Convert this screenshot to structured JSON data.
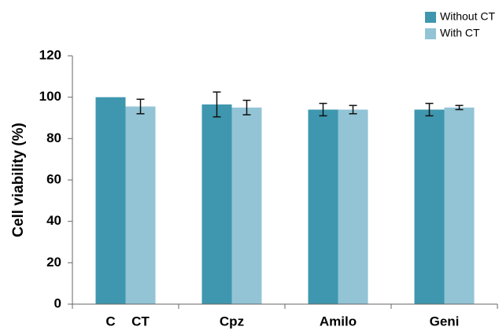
{
  "chart_data": {
    "type": "bar",
    "ylabel": "Cell viability (%)",
    "categories": [
      null,
      "Cpz",
      "Amilo",
      "Geni"
    ],
    "bar_labels": [
      "C",
      "CT"
    ],
    "series": [
      {
        "name": "Without CT",
        "color": "#3e97ae",
        "values": [
          100,
          96.5,
          94,
          94
        ],
        "errors": [
          null,
          6,
          3,
          3
        ]
      },
      {
        "name": "With CT",
        "color": "#92c4d6",
        "values": [
          95.5,
          95,
          94,
          95
        ],
        "errors": [
          3.5,
          3.5,
          2,
          1
        ]
      }
    ],
    "ylim": [
      0,
      120
    ],
    "yticks": [
      0,
      20,
      40,
      60,
      80,
      100,
      120
    ],
    "legend": "top-right"
  }
}
